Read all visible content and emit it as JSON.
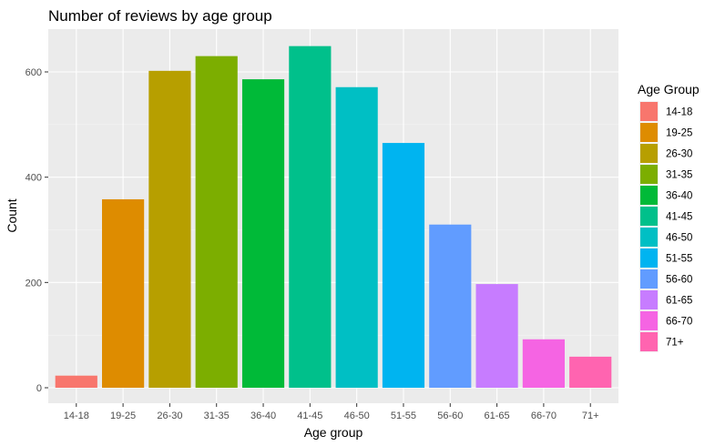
{
  "chart_data": {
    "type": "bar",
    "title": "Number of reviews by age group",
    "xlabel": "Age group",
    "ylabel": "Count",
    "categories": [
      "14-18",
      "19-25",
      "26-30",
      "31-35",
      "36-40",
      "41-45",
      "46-50",
      "51-55",
      "56-60",
      "61-65",
      "66-70",
      "71+"
    ],
    "values": [
      23,
      358,
      602,
      630,
      586,
      649,
      571,
      465,
      310,
      197,
      92,
      59
    ],
    "colors": [
      "#F8766D",
      "#DE8C00",
      "#B79F00",
      "#7CAE00",
      "#00BA38",
      "#00C08B",
      "#00BFC4",
      "#00B4F0",
      "#619CFF",
      "#C77CFF",
      "#F564E3",
      "#FF64B0"
    ],
    "ylim": [
      0,
      670
    ],
    "yticks": [
      0,
      200,
      400,
      600
    ],
    "grid": true,
    "panel_background": "#EBEBEB",
    "legend": {
      "title": "Age Group",
      "position": "right"
    }
  }
}
